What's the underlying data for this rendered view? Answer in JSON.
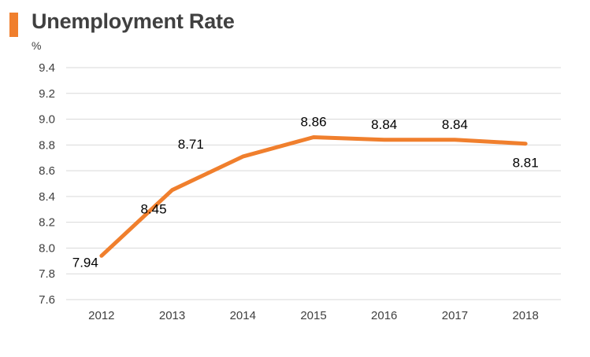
{
  "colors": {
    "accent": "#f07f2d",
    "grid": "#d9d9d9",
    "text": "#404040"
  },
  "chart_data": {
    "type": "line",
    "title": "Unemployment Rate",
    "ylabel": "%",
    "xlabel": "",
    "categories": [
      "2012",
      "2013",
      "2014",
      "2015",
      "2016",
      "2017",
      "2018"
    ],
    "series": [
      {
        "values": [
          7.94,
          8.45,
          8.71,
          8.86,
          8.84,
          8.84,
          8.81
        ]
      }
    ],
    "data_labels": [
      "7.94",
      "8.45",
      "8.71",
      "8.86",
      "8.84",
      "8.84",
      "8.81"
    ],
    "ylim": [
      7.6,
      9.4
    ],
    "yticks": [
      "7.6",
      "7.8",
      "8.0",
      "8.2",
      "8.4",
      "8.6",
      "8.8",
      "9.0",
      "9.2",
      "9.4"
    ],
    "grid": true,
    "legend": "none"
  }
}
